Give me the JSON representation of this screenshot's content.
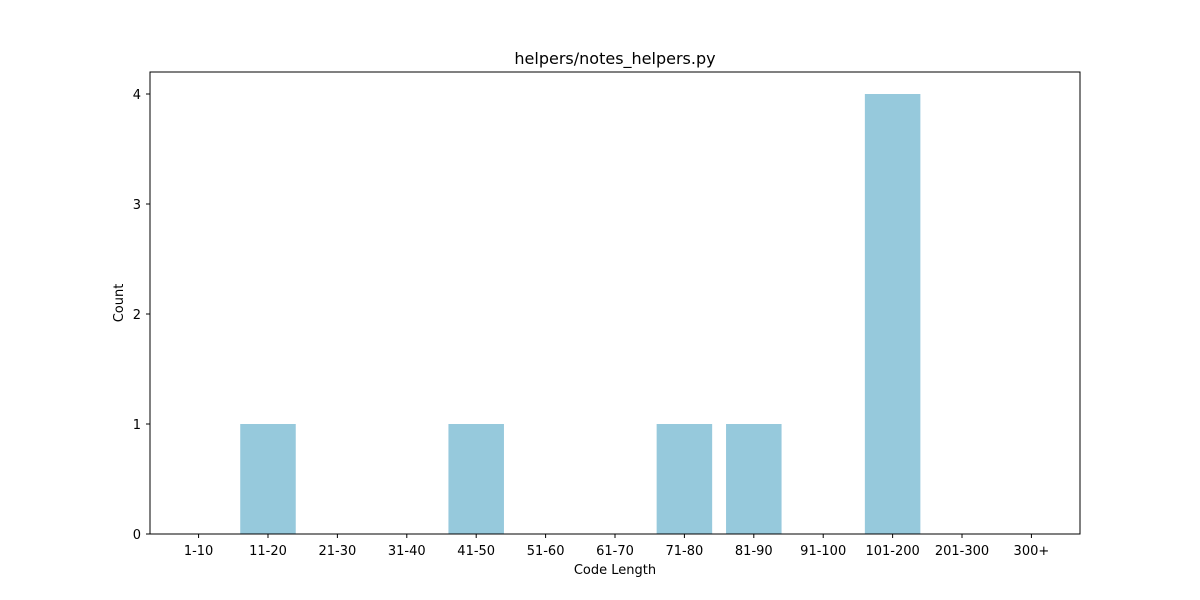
{
  "chart_data": {
    "type": "bar",
    "title": "helpers/notes_helpers.py",
    "xlabel": "Code Length",
    "ylabel": "Count",
    "categories": [
      "1-10",
      "11-20",
      "21-30",
      "31-40",
      "41-50",
      "51-60",
      "61-70",
      "71-80",
      "81-90",
      "91-100",
      "101-200",
      "201-300",
      "300+"
    ],
    "values": [
      0,
      1,
      0,
      0,
      1,
      0,
      0,
      1,
      1,
      0,
      4,
      0,
      0
    ],
    "yticks": [
      "0",
      "1",
      "2",
      "3",
      "4"
    ],
    "ylim": [
      0,
      4.2
    ],
    "bar_color": "#96c9dc",
    "grid": false,
    "legend": "none"
  }
}
